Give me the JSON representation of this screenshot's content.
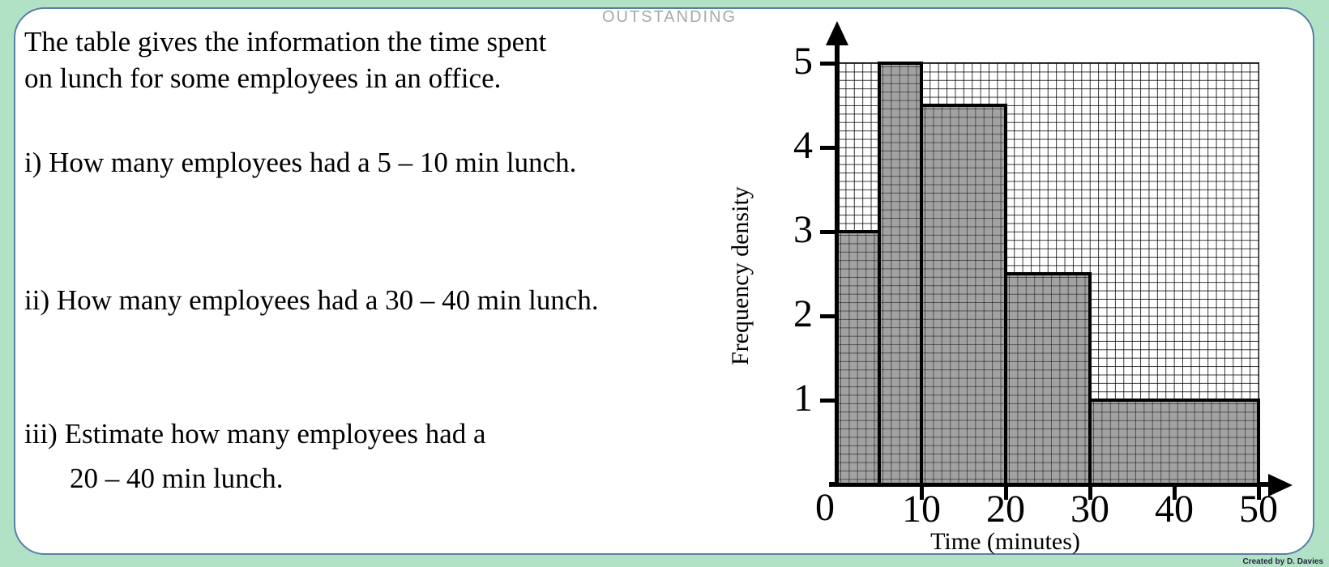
{
  "page": {
    "background_color": "#b2e2c6",
    "card_border_color": "#5b7fa6",
    "watermark": "OUTSTANDING",
    "credit": "Created by D. Davies"
  },
  "question": {
    "intro_line1": "The table gives the information the time spent",
    "intro_line2": "on lunch for some employees in an office.",
    "part_i": "i) How many employees had a 5 – 10 min lunch.",
    "part_ii": "ii) How many employees had a 30 – 40 min lunch.",
    "part_iii_line1": "iii) Estimate how many employees had a",
    "part_iii_line2": "20 – 40 min lunch."
  },
  "chart_data": {
    "type": "bar",
    "subtype": "histogram",
    "title": "",
    "xlabel": "Time (minutes)",
    "ylabel": "Frequency density",
    "xlim": [
      0,
      50
    ],
    "ylim": [
      0,
      5
    ],
    "x_ticks": [
      0,
      10,
      20,
      30,
      40,
      50
    ],
    "y_ticks": [
      1,
      2,
      3,
      4,
      5
    ],
    "grid": "fine square grid, 1 minute per cell horizontally, 0.1 density per cell vertically",
    "bars": [
      {
        "interval": [
          0,
          5
        ],
        "frequency_density": 3.0
      },
      {
        "interval": [
          5,
          10
        ],
        "frequency_density": 5.0
      },
      {
        "interval": [
          10,
          20
        ],
        "frequency_density": 4.5
      },
      {
        "interval": [
          20,
          30
        ],
        "frequency_density": 2.5
      },
      {
        "interval": [
          30,
          50
        ],
        "frequency_density": 1.0
      }
    ],
    "bar_fill_color": "#a2a2a2",
    "legend_position": "none"
  }
}
